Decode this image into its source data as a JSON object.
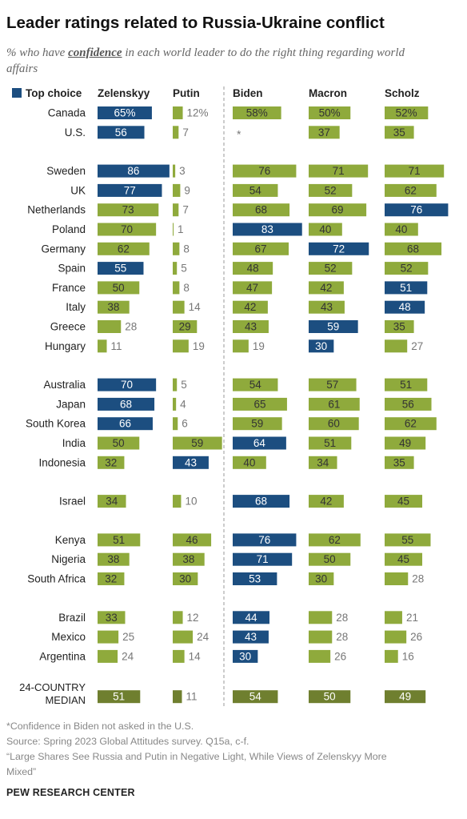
{
  "title": "Leader ratings related to Russia-Ukraine conflict",
  "subtitle": {
    "before": "% who have ",
    "emphasis": "confidence",
    "after": " in each world leader to do the right thing regarding world affairs"
  },
  "legend": {
    "label": "Top choice",
    "color": "#1c4e80"
  },
  "colors": {
    "top": "#1c4e80",
    "other": "#8faa3c",
    "median": "#6f7f2f",
    "label_light": "#ffffff",
    "label_dark": "#333333",
    "label_outside": "#777777"
  },
  "chart_data": {
    "type": "bar",
    "series": [
      {
        "name": "Zelenskyy"
      },
      {
        "name": "Putin"
      },
      {
        "name": "Biden"
      },
      {
        "name": "Macron"
      },
      {
        "name": "Scholz"
      }
    ],
    "groups": [
      {
        "rows": [
          {
            "country": "Canada",
            "values": [
              65,
              12,
              58,
              50,
              52
            ],
            "labels": [
              "65%",
              "12%",
              "58%",
              "50%",
              "52%"
            ],
            "top": 0
          },
          {
            "country": "U.S.",
            "values": [
              56,
              7,
              null,
              37,
              35
            ],
            "labels": [
              "56",
              "7",
              "*",
              "37",
              "35"
            ],
            "top": 0
          }
        ]
      },
      {
        "rows": [
          {
            "country": "Sweden",
            "values": [
              86,
              3,
              76,
              71,
              71
            ],
            "labels": [
              "86",
              "3",
              "76",
              "71",
              "71"
            ],
            "top": 0
          },
          {
            "country": "UK",
            "values": [
              77,
              9,
              54,
              52,
              62
            ],
            "labels": [
              "77",
              "9",
              "54",
              "52",
              "62"
            ],
            "top": 0
          },
          {
            "country": "Netherlands",
            "values": [
              73,
              7,
              68,
              69,
              76
            ],
            "labels": [
              "73",
              "7",
              "68",
              "69",
              "76"
            ],
            "top": 4
          },
          {
            "country": "Poland",
            "values": [
              70,
              1,
              83,
              40,
              40
            ],
            "labels": [
              "70",
              "1",
              "83",
              "40",
              "40"
            ],
            "top": 2
          },
          {
            "country": "Germany",
            "values": [
              62,
              8,
              67,
              72,
              68
            ],
            "labels": [
              "62",
              "8",
              "67",
              "72",
              "68"
            ],
            "top": 3
          },
          {
            "country": "Spain",
            "values": [
              55,
              5,
              48,
              52,
              52
            ],
            "labels": [
              "55",
              "5",
              "48",
              "52",
              "52"
            ],
            "top": 0
          },
          {
            "country": "France",
            "values": [
              50,
              8,
              47,
              42,
              51
            ],
            "labels": [
              "50",
              "8",
              "47",
              "42",
              "51"
            ],
            "top": 4
          },
          {
            "country": "Italy",
            "values": [
              38,
              14,
              42,
              43,
              48
            ],
            "labels": [
              "38",
              "14",
              "42",
              "43",
              "48"
            ],
            "top": 4
          },
          {
            "country": "Greece",
            "values": [
              28,
              29,
              43,
              59,
              35
            ],
            "labels": [
              "28",
              "29",
              "43",
              "59",
              "35"
            ],
            "top": 3
          },
          {
            "country": "Hungary",
            "values": [
              11,
              19,
              19,
              30,
              27
            ],
            "labels": [
              "11",
              "19",
              "19",
              "30",
              "27"
            ],
            "top": 3
          }
        ]
      },
      {
        "rows": [
          {
            "country": "Australia",
            "values": [
              70,
              5,
              54,
              57,
              51
            ],
            "labels": [
              "70",
              "5",
              "54",
              "57",
              "51"
            ],
            "top": 0
          },
          {
            "country": "Japan",
            "values": [
              68,
              4,
              65,
              61,
              56
            ],
            "labels": [
              "68",
              "4",
              "65",
              "61",
              "56"
            ],
            "top": 0
          },
          {
            "country": "South Korea",
            "values": [
              66,
              6,
              59,
              60,
              62
            ],
            "labels": [
              "66",
              "6",
              "59",
              "60",
              "62"
            ],
            "top": 0
          },
          {
            "country": "India",
            "values": [
              50,
              59,
              64,
              51,
              49
            ],
            "labels": [
              "50",
              "59",
              "64",
              "51",
              "49"
            ],
            "top": 2
          },
          {
            "country": "Indonesia",
            "values": [
              32,
              43,
              40,
              34,
              35
            ],
            "labels": [
              "32",
              "43",
              "40",
              "34",
              "35"
            ],
            "top": 1
          }
        ]
      },
      {
        "rows": [
          {
            "country": "Israel",
            "values": [
              34,
              10,
              68,
              42,
              45
            ],
            "labels": [
              "34",
              "10",
              "68",
              "42",
              "45"
            ],
            "top": 2
          }
        ]
      },
      {
        "rows": [
          {
            "country": "Kenya",
            "values": [
              51,
              46,
              76,
              62,
              55
            ],
            "labels": [
              "51",
              "46",
              "76",
              "62",
              "55"
            ],
            "top": 2
          },
          {
            "country": "Nigeria",
            "values": [
              38,
              38,
              71,
              50,
              45
            ],
            "labels": [
              "38",
              "38",
              "71",
              "50",
              "45"
            ],
            "top": 2
          },
          {
            "country": "South Africa",
            "values": [
              32,
              30,
              53,
              30,
              28
            ],
            "labels": [
              "32",
              "30",
              "53",
              "30",
              "28"
            ],
            "top": 2
          }
        ]
      },
      {
        "rows": [
          {
            "country": "Brazil",
            "values": [
              33,
              12,
              44,
              28,
              21
            ],
            "labels": [
              "33",
              "12",
              "44",
              "28",
              "21"
            ],
            "top": 2
          },
          {
            "country": "Mexico",
            "values": [
              25,
              24,
              43,
              28,
              26
            ],
            "labels": [
              "25",
              "24",
              "43",
              "28",
              "26"
            ],
            "top": 2
          },
          {
            "country": "Argentina",
            "values": [
              24,
              14,
              30,
              26,
              16
            ],
            "labels": [
              "24",
              "14",
              "30",
              "26",
              "16"
            ],
            "top": 2
          }
        ]
      }
    ],
    "median": {
      "label_lines": [
        "24-COUNTRY",
        "MEDIAN"
      ],
      "values": [
        51,
        11,
        54,
        50,
        49
      ],
      "labels": [
        "51",
        "11",
        "54",
        "50",
        "49"
      ]
    }
  },
  "footnotes": [
    "*Confidence in Biden not asked in the U.S.",
    "Source: Spring 2023 Global Attitudes survey. Q15a, c-f.",
    "“Large Shares See Russia and Putin in Negative Light, While Views of Zelenskyy More",
    "Mixed”"
  ],
  "credit": "PEW RESEARCH CENTER"
}
